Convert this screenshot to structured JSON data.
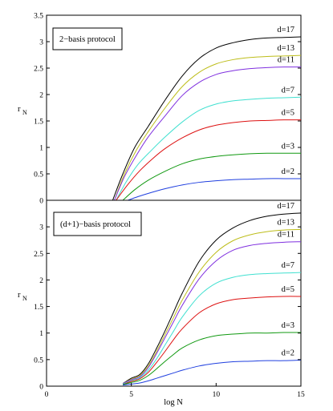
{
  "chart_data": [
    {
      "type": "line",
      "title": "2−basis protocol",
      "xlabel": "",
      "ylabel": "r",
      "ylabel_subscript": "N",
      "xlim": [
        0,
        15
      ],
      "ylim": [
        0,
        3.5
      ],
      "xticks": [],
      "yticks": [
        0,
        0.5,
        1,
        1.5,
        2,
        2.5,
        3,
        3.5
      ],
      "ytick_labels": [
        "0",
        "0.5",
        "1",
        "1.5",
        "2",
        "2.5",
        "3",
        "3.5"
      ],
      "grid": false,
      "legend": "top-left",
      "series": [
        {
          "name": "d=17",
          "color": "#000000",
          "x": [
            3.9,
            4.5,
            5.2,
            6,
            7,
            8,
            9,
            10,
            11,
            12,
            13,
            14,
            15
          ],
          "y": [
            0,
            0.5,
            1.0,
            1.4,
            1.9,
            2.35,
            2.68,
            2.88,
            2.98,
            3.04,
            3.07,
            3.08,
            3.09
          ]
        },
        {
          "name": "d=13",
          "color": "#bdbd1a",
          "x": [
            4.0,
            4.6,
            5.3,
            6,
            7,
            8,
            9,
            10,
            11,
            12,
            13,
            14,
            15
          ],
          "y": [
            0,
            0.5,
            0.95,
            1.3,
            1.75,
            2.15,
            2.42,
            2.58,
            2.66,
            2.7,
            2.72,
            2.73,
            2.74
          ]
        },
        {
          "name": "d=11",
          "color": "#7f2fdf",
          "x": [
            4.0,
            4.6,
            5.3,
            6,
            7,
            8,
            9,
            10,
            11,
            12,
            13,
            14,
            15
          ],
          "y": [
            0,
            0.45,
            0.85,
            1.2,
            1.6,
            1.98,
            2.23,
            2.38,
            2.45,
            2.49,
            2.51,
            2.52,
            2.52
          ]
        },
        {
          "name": "d=7",
          "color": "#40e0d0",
          "x": [
            4.1,
            4.7,
            5.4,
            6.2,
            7,
            8,
            9,
            10,
            11,
            12,
            13,
            14,
            15
          ],
          "y": [
            0,
            0.35,
            0.68,
            0.95,
            1.2,
            1.48,
            1.7,
            1.82,
            1.88,
            1.91,
            1.93,
            1.94,
            1.95
          ]
        },
        {
          "name": "d=5",
          "color": "#dd1111",
          "x": [
            4.1,
            4.8,
            5.5,
            6.3,
            7,
            8,
            9,
            10,
            11,
            12,
            13,
            14,
            15
          ],
          "y": [
            0,
            0.3,
            0.56,
            0.8,
            0.98,
            1.18,
            1.33,
            1.42,
            1.47,
            1.5,
            1.51,
            1.52,
            1.52
          ]
        },
        {
          "name": "d=3",
          "color": "#119911",
          "x": [
            4.5,
            5.2,
            6,
            7,
            8,
            9,
            10,
            11,
            12,
            13,
            14,
            15
          ],
          "y": [
            0,
            0.2,
            0.38,
            0.55,
            0.69,
            0.78,
            0.83,
            0.86,
            0.88,
            0.89,
            0.89,
            0.89
          ]
        },
        {
          "name": "d=2",
          "color": "#1f3fdf",
          "x": [
            4.8,
            5.4,
            6.2,
            7,
            8,
            9,
            10,
            11,
            12,
            13,
            14,
            15
          ],
          "y": [
            0,
            0.07,
            0.15,
            0.22,
            0.29,
            0.34,
            0.37,
            0.39,
            0.4,
            0.41,
            0.41,
            0.41
          ]
        }
      ]
    },
    {
      "type": "line",
      "title": "(d+1)−basis protocol",
      "xlabel": "log N",
      "ylabel": "r",
      "ylabel_subscript": "N",
      "xlim": [
        0,
        15
      ],
      "ylim": [
        0,
        3.5
      ],
      "xticks": [
        0,
        5,
        10,
        15
      ],
      "xtick_labels": [
        "0",
        "5",
        "10",
        "15"
      ],
      "yticks": [
        0,
        0.5,
        1,
        1.5,
        2,
        2.5,
        3
      ],
      "ytick_labels": [
        "0",
        "0.5",
        "1",
        "1.5",
        "2",
        "2.5",
        "3"
      ],
      "grid": false,
      "legend": "top-left",
      "series": [
        {
          "name": "d=17",
          "color": "#000000",
          "x": [
            4.5,
            5,
            5.5,
            6,
            6.5,
            7,
            7.5,
            8,
            9,
            10,
            11,
            12,
            13,
            14,
            15
          ],
          "y": [
            0.05,
            0.15,
            0.22,
            0.42,
            0.72,
            1.05,
            1.4,
            1.75,
            2.35,
            2.75,
            2.98,
            3.12,
            3.2,
            3.24,
            3.26
          ]
        },
        {
          "name": "d=13",
          "color": "#bdbd1a",
          "x": [
            4.5,
            5,
            5.5,
            6,
            6.5,
            7,
            7.5,
            8,
            9,
            10,
            11,
            12,
            13,
            14,
            15
          ],
          "y": [
            0.05,
            0.13,
            0.2,
            0.38,
            0.66,
            0.98,
            1.3,
            1.62,
            2.15,
            2.52,
            2.74,
            2.85,
            2.91,
            2.94,
            2.95
          ]
        },
        {
          "name": "d=11",
          "color": "#7f2fdf",
          "x": [
            4.5,
            5,
            5.5,
            6,
            6.5,
            7,
            7.5,
            8,
            9,
            10,
            11,
            12,
            13,
            14,
            15
          ],
          "y": [
            0.05,
            0.12,
            0.18,
            0.35,
            0.62,
            0.92,
            1.22,
            1.52,
            2.02,
            2.36,
            2.56,
            2.65,
            2.69,
            2.71,
            2.72
          ]
        },
        {
          "name": "d=7",
          "color": "#40e0d0",
          "x": [
            4.5,
            5,
            5.5,
            6,
            6.5,
            7,
            7.5,
            8,
            9,
            10,
            11,
            12,
            13,
            14,
            15
          ],
          "y": [
            0.04,
            0.1,
            0.16,
            0.3,
            0.52,
            0.78,
            1.04,
            1.3,
            1.7,
            1.94,
            2.05,
            2.1,
            2.12,
            2.13,
            2.14
          ]
        },
        {
          "name": "d=5",
          "color": "#dd1111",
          "x": [
            4.5,
            5,
            5.5,
            6,
            6.5,
            7,
            7.5,
            8,
            9,
            10,
            11,
            12,
            13,
            14,
            15
          ],
          "y": [
            0.03,
            0.09,
            0.14,
            0.26,
            0.45,
            0.66,
            0.88,
            1.08,
            1.38,
            1.55,
            1.63,
            1.66,
            1.68,
            1.69,
            1.69
          ]
        },
        {
          "name": "d=3",
          "color": "#119911",
          "x": [
            4.5,
            5,
            5.5,
            6,
            6.5,
            7,
            7.5,
            8,
            9,
            10,
            11,
            12,
            13,
            14,
            15
          ],
          "y": [
            0.03,
            0.07,
            0.11,
            0.2,
            0.33,
            0.47,
            0.6,
            0.72,
            0.87,
            0.95,
            0.98,
            1.0,
            1.0,
            1.01,
            1.01
          ]
        },
        {
          "name": "d=2",
          "color": "#1f3fdf",
          "x": [
            4.5,
            5,
            5.5,
            6,
            6.5,
            7,
            7.5,
            8,
            9,
            10,
            11,
            12,
            13,
            14,
            15
          ],
          "y": [
            0.02,
            0.04,
            0.06,
            0.1,
            0.15,
            0.2,
            0.25,
            0.3,
            0.38,
            0.43,
            0.46,
            0.47,
            0.48,
            0.48,
            0.49
          ]
        }
      ]
    }
  ]
}
